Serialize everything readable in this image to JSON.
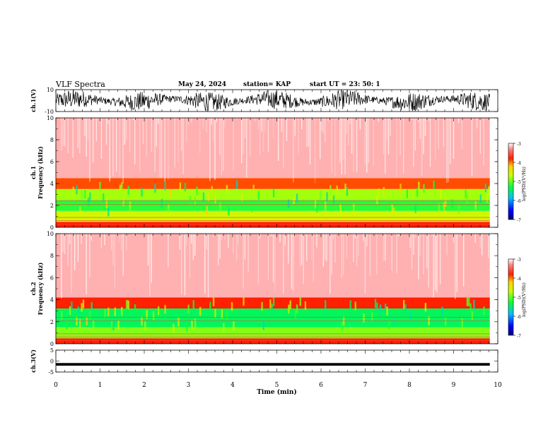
{
  "header": {
    "title": "VLF Spectra",
    "date": "May 24, 2024",
    "station": "station= KAP",
    "start": "start  UT  =   23: 50: 1"
  },
  "chart_data": [
    {
      "type": "line",
      "ylabel": "ch.1(V)",
      "ylim": [
        -10,
        10
      ],
      "yticks": [
        "10",
        "-10"
      ],
      "xlim": [
        0,
        10
      ],
      "description_values": {
        "x_start_min": 0,
        "x_end_min": 9.82,
        "amplitude_v": [
          -10,
          10
        ]
      }
    },
    {
      "type": "heatmap",
      "ylabel": "ch.1\nFrequency (kHz)",
      "ylim": [
        0,
        10
      ],
      "yticks": [
        "0",
        "2",
        "4",
        "6",
        "8",
        "10"
      ],
      "xlim": [
        0,
        10
      ],
      "band_levels": [
        {
          "f_from": 0,
          "f_to": 0.5,
          "log_psd": -3.8
        },
        {
          "f_from": 0.5,
          "f_to": 1.5,
          "log_psd": -4.6
        },
        {
          "f_from": 1.5,
          "f_to": 2.5,
          "log_psd": -5.2
        },
        {
          "f_from": 2.5,
          "f_to": 3.5,
          "log_psd": -4.8
        },
        {
          "f_from": 3.5,
          "f_to": 4.5,
          "log_psd": -3.9
        },
        {
          "f_from": 4.5,
          "f_to": 10,
          "log_psd": -3.2
        }
      ],
      "colorbar": {
        "label": "log(PSD)(V²/Hz)",
        "range": [
          -7,
          -3
        ],
        "ticks": [
          "-3",
          "-4",
          "-5",
          "-6",
          "-7"
        ]
      }
    },
    {
      "type": "heatmap",
      "ylabel": "ch.2\nFrequency (kHz)",
      "ylim": [
        0,
        10
      ],
      "yticks": [
        "0",
        "2",
        "4",
        "6",
        "8",
        "10"
      ],
      "xlim": [
        0,
        10
      ],
      "band_levels": [
        {
          "f_from": 0,
          "f_to": 0.5,
          "log_psd": -3.8
        },
        {
          "f_from": 0.5,
          "f_to": 1.5,
          "log_psd": -4.9
        },
        {
          "f_from": 1.5,
          "f_to": 3.2,
          "log_psd": -5.4
        },
        {
          "f_from": 3.2,
          "f_to": 4.2,
          "log_psd": -3.8
        },
        {
          "f_from": 4.2,
          "f_to": 10,
          "log_psd": -3.2
        }
      ],
      "colorbar": {
        "label": "log(PSD)(V²/Hz)",
        "range": [
          -7,
          -3
        ],
        "ticks": [
          "-3",
          "-4",
          "-5",
          "-6",
          "-7"
        ]
      }
    },
    {
      "type": "line",
      "ylabel": "ch.3(V)",
      "ylim": [
        -5,
        5
      ],
      "yticks": [
        "5",
        "0",
        "-5"
      ],
      "xlim": [
        0,
        10
      ],
      "description_values": {
        "x_start_min": 0,
        "x_end_min": 9.82,
        "level_v": -1.5
      }
    }
  ],
  "xaxis": {
    "xlabel": "Time  (min)",
    "ticks": [
      "0",
      "1",
      "2",
      "3",
      "4",
      "5",
      "6",
      "7",
      "8",
      "9",
      "10"
    ],
    "data_end_min": 9.82
  }
}
